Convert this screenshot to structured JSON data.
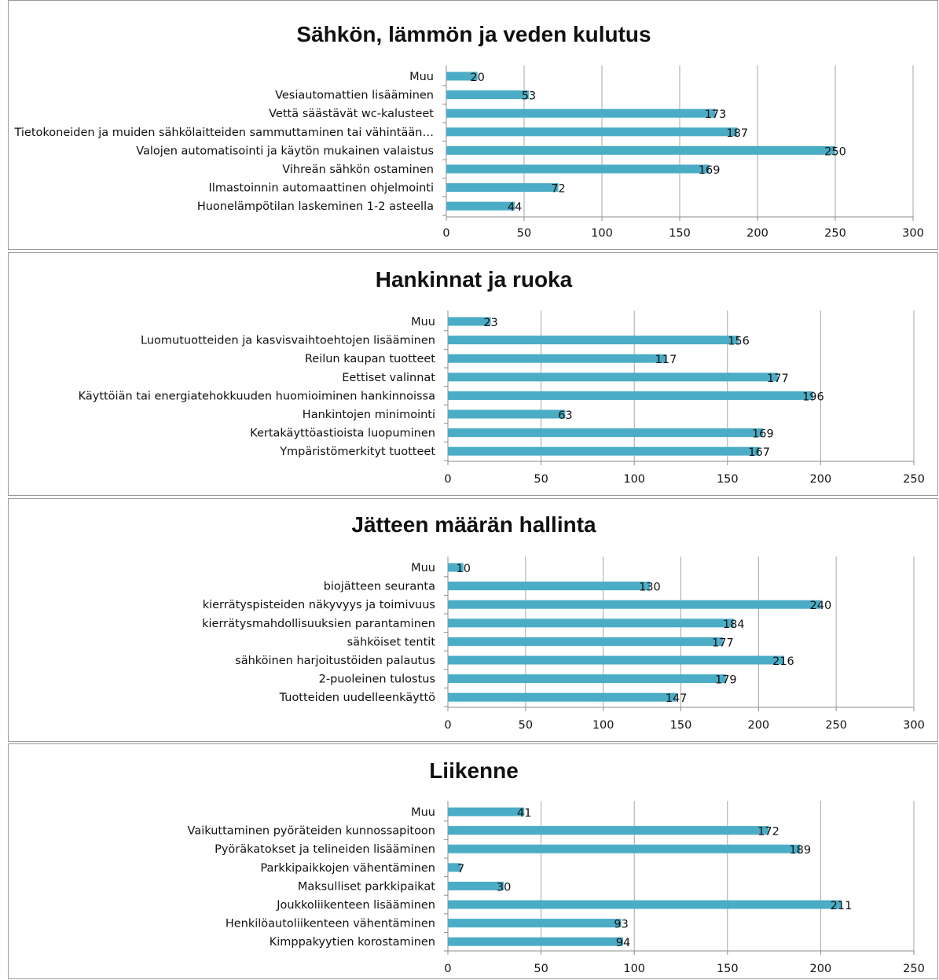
{
  "colors": {
    "bar": "#4bacc6",
    "grid": "#a6a6a6",
    "axis": "#8c8c8c",
    "text": "#111111"
  },
  "chart_data": [
    {
      "type": "bar",
      "orientation": "horizontal",
      "title": "Sähkön, lämmön ja veden kulutus",
      "categories": [
        "Muu",
        "Vesiautomattien lisääminen",
        "Vettä säästävät wc-kalusteet",
        "Tietokoneiden ja muiden sähkölaitteiden sammuttaminen tai vähintään…",
        "Valojen automatisointi ja käytön mukainen valaistus",
        "Vihreän sähkön ostaminen",
        "Ilmastoinnin automaattinen ohjelmointi",
        "Huonelämpötilan laskeminen 1-2 asteella"
      ],
      "values": [
        20,
        53,
        173,
        187,
        250,
        169,
        72,
        44
      ],
      "xlim": [
        0,
        300
      ],
      "ticks": [
        "0",
        "50",
        "100",
        "150",
        "200",
        "250",
        "300"
      ],
      "grid": true,
      "legend": "none"
    },
    {
      "type": "bar",
      "orientation": "horizontal",
      "title": "Hankinnat ja ruoka",
      "categories": [
        "Muu",
        "Luomutuotteiden ja kasvisvaihtoehtojen lisääminen",
        "Reilun kaupan tuotteet",
        "Eettiset valinnat",
        "Käyttöiän tai energiatehokkuuden huomioiminen hankinnoissa",
        "Hankintojen minimointi",
        "Kertakäyttöastioista luopuminen",
        "Ympäristömerkityt tuotteet"
      ],
      "values": [
        23,
        156,
        117,
        177,
        196,
        63,
        169,
        167
      ],
      "xlim": [
        0,
        250
      ],
      "ticks": [
        "0",
        "50",
        "100",
        "150",
        "200",
        "250"
      ],
      "grid": true,
      "legend": "none"
    },
    {
      "type": "bar",
      "orientation": "horizontal",
      "title": "Jätteen määrän hallinta",
      "categories": [
        "Muu",
        "biojätteen seuranta",
        "kierrätyspisteiden näkyvyys ja toimivuus",
        "kierrätysmahdollisuuksien parantaminen",
        "sähköiset tentit",
        "sähköinen harjoitustöiden palautus",
        "2-puoleinen tulostus",
        "Tuotteiden uudelleenkäyttö"
      ],
      "values": [
        10,
        130,
        240,
        184,
        177,
        216,
        179,
        147
      ],
      "xlim": [
        0,
        300
      ],
      "ticks": [
        "0",
        "50",
        "100",
        "150",
        "200",
        "250",
        "300"
      ],
      "grid": true,
      "legend": "none"
    },
    {
      "type": "bar",
      "orientation": "horizontal",
      "title": "Liikenne",
      "categories": [
        "Muu",
        "Vaikuttaminen pyöräteiden kunnossapitoon",
        "Pyöräkatokset ja telineiden lisääminen",
        "Parkkipaikkojen vähentäminen",
        "Maksulliset parkkipaikat",
        "Joukkoliikenteen lisääminen",
        "Henkilöautoliikenteen vähentäminen",
        "Kimppakyytien korostaminen"
      ],
      "values": [
        41,
        172,
        189,
        7,
        30,
        211,
        93,
        94
      ],
      "xlim": [
        0,
        250
      ],
      "ticks": [
        "0",
        "50",
        "100",
        "150",
        "200",
        "250"
      ],
      "grid": true,
      "legend": "none"
    }
  ]
}
